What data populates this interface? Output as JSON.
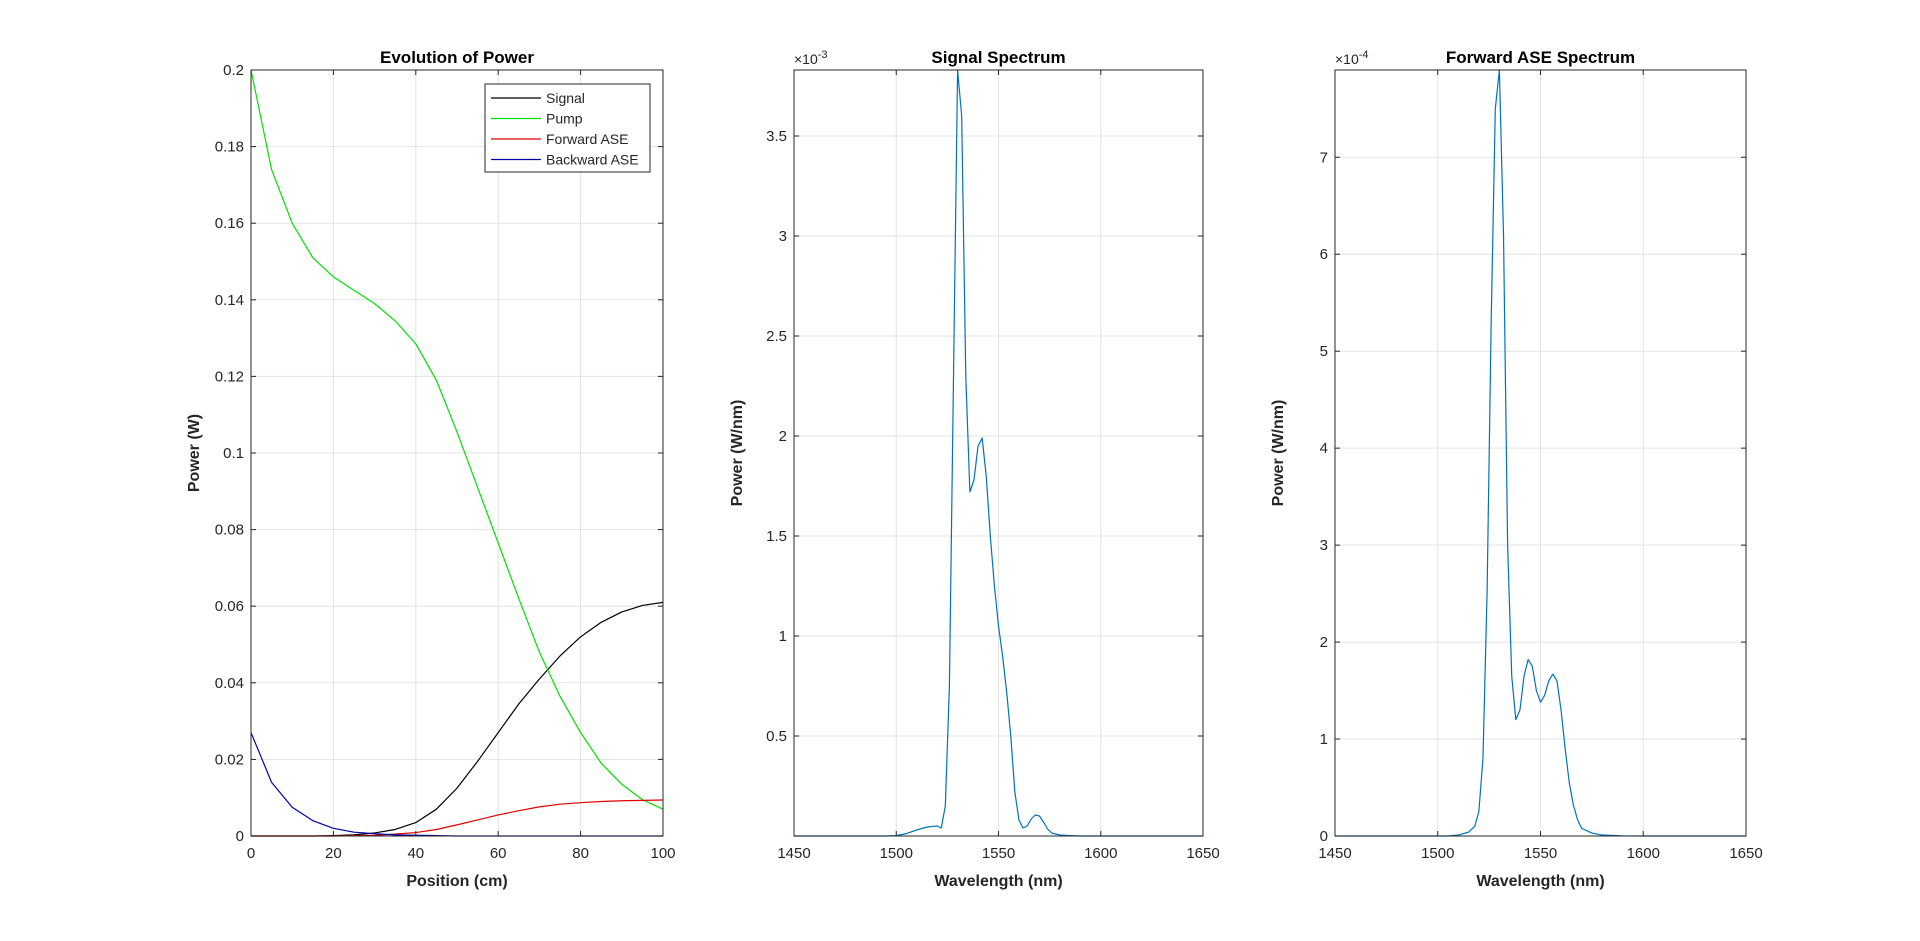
{
  "colors": {
    "signal": "#000000",
    "pump": "#00e000",
    "forward_ase": "#e00000",
    "backward_ase": "#0000b0",
    "spectrum": "#0072bd",
    "grid": "#e3e3e3",
    "axes": "#262626"
  },
  "chart_data": [
    {
      "type": "line",
      "title": "Evolution of Power",
      "xlabel": "Position (cm)",
      "ylabel": "Power (W)",
      "xlim": [
        0,
        100
      ],
      "ylim": [
        0,
        0.2
      ],
      "xticks": [
        0,
        20,
        40,
        60,
        80,
        100
      ],
      "xtick_labels": [
        "0",
        "20",
        "40",
        "60",
        "80",
        "100"
      ],
      "yticks": [
        0,
        0.02,
        0.04,
        0.06,
        0.08,
        0.1,
        0.12,
        0.14,
        0.16,
        0.18,
        0.2
      ],
      "ytick_labels": [
        "0",
        "0.02",
        "0.04",
        "0.06",
        "0.08",
        "0.1",
        "0.12",
        "0.14",
        "0.16",
        "0.18",
        "0.2"
      ],
      "grid": true,
      "legend": "top-right",
      "x": [
        0,
        5,
        10,
        15,
        20,
        25,
        30,
        35,
        40,
        45,
        50,
        55,
        60,
        65,
        70,
        75,
        80,
        85,
        90,
        95,
        100
      ],
      "series": [
        {
          "name": "Signal",
          "color_key": "signal",
          "values": [
            0,
            0,
            0,
            0,
            0.0001,
            0.0003,
            0.0008,
            0.0017,
            0.0035,
            0.007,
            0.0125,
            0.0195,
            0.027,
            0.0345,
            0.041,
            0.047,
            0.052,
            0.0558,
            0.0585,
            0.0602,
            0.061
          ]
        },
        {
          "name": "Pump",
          "color_key": "pump",
          "values": [
            0.2,
            0.174,
            0.16,
            0.151,
            0.146,
            0.1425,
            0.139,
            0.1345,
            0.1285,
            0.119,
            0.1055,
            0.091,
            0.0765,
            0.062,
            0.048,
            0.0365,
            0.027,
            0.019,
            0.0135,
            0.0095,
            0.007
          ]
        },
        {
          "name": "Forward ASE",
          "color_key": "forward_ase",
          "values": [
            0,
            0,
            0,
            0,
            0,
            0.0001,
            0.0002,
            0.0005,
            0.0009,
            0.0017,
            0.0029,
            0.0042,
            0.0055,
            0.0066,
            0.0076,
            0.0083,
            0.0087,
            0.009,
            0.0092,
            0.0093,
            0.0094
          ]
        },
        {
          "name": "Backward ASE",
          "color_key": "backward_ase",
          "values": [
            0.027,
            0.014,
            0.0075,
            0.004,
            0.002,
            0.001,
            0.0006,
            0.0003,
            0.0002,
            0.0001,
            0,
            0,
            0,
            0,
            0,
            0,
            0,
            0,
            0,
            0,
            0
          ]
        }
      ]
    },
    {
      "type": "line",
      "title": "Signal Spectrum",
      "xlabel": "Wavelength (nm)",
      "ylabel": "Power (W/nm)",
      "exponent_label": "×10",
      "exponent_power": "-3",
      "y_multiplier": 0.001,
      "xlim": [
        1450,
        1650
      ],
      "ylim": [
        0,
        3.83
      ],
      "xticks": [
        1450,
        1500,
        1550,
        1600,
        1650
      ],
      "xtick_labels": [
        "1450",
        "1500",
        "1550",
        "1600",
        "1650"
      ],
      "yticks": [
        0.5,
        1,
        1.5,
        2,
        2.5,
        3,
        3.5
      ],
      "ytick_labels": [
        "0.5",
        "1",
        "1.5",
        "2",
        "2.5",
        "3",
        "3.5"
      ],
      "grid": true,
      "series": [
        {
          "color_key": "spectrum",
          "x": [
            1450,
            1495,
            1500,
            1505,
            1510,
            1515,
            1520,
            1522,
            1524,
            1526,
            1528,
            1530,
            1532,
            1534,
            1536,
            1538,
            1540,
            1542,
            1544,
            1546,
            1548,
            1550,
            1552,
            1554,
            1556,
            1558,
            1560,
            1562,
            1564,
            1566,
            1568,
            1570,
            1572,
            1574,
            1576,
            1580,
            1585,
            1590,
            1600,
            1650
          ],
          "values": [
            0,
            0,
            0.002,
            0.012,
            0.03,
            0.045,
            0.05,
            0.04,
            0.15,
            0.75,
            2.3,
            3.83,
            3.6,
            2.3,
            1.72,
            1.78,
            1.95,
            1.99,
            1.8,
            1.5,
            1.25,
            1.05,
            0.9,
            0.72,
            0.5,
            0.22,
            0.08,
            0.04,
            0.05,
            0.085,
            0.105,
            0.1,
            0.07,
            0.035,
            0.015,
            0.005,
            0.002,
            0,
            0,
            0
          ]
        }
      ]
    },
    {
      "type": "line",
      "title": "Forward ASE Spectrum",
      "xlabel": "Wavelength (nm)",
      "ylabel": "Power (W/nm)",
      "exponent_label": "×10",
      "exponent_power": "-4",
      "y_multiplier": 0.0001,
      "xlim": [
        1450,
        1650
      ],
      "ylim": [
        0,
        7.9
      ],
      "xticks": [
        1450,
        1500,
        1550,
        1600,
        1650
      ],
      "xtick_labels": [
        "1450",
        "1500",
        "1550",
        "1600",
        "1650"
      ],
      "yticks": [
        0,
        1,
        2,
        3,
        4,
        5,
        6,
        7
      ],
      "ytick_labels": [
        "0",
        "1",
        "2",
        "3",
        "4",
        "5",
        "6",
        "7"
      ],
      "grid": true,
      "series": [
        {
          "color_key": "spectrum",
          "x": [
            1450,
            1505,
            1510,
            1515,
            1518,
            1520,
            1522,
            1524,
            1526,
            1528,
            1530,
            1532,
            1534,
            1536,
            1538,
            1540,
            1542,
            1544,
            1546,
            1548,
            1550,
            1552,
            1554,
            1556,
            1558,
            1560,
            1562,
            1564,
            1566,
            1568,
            1570,
            1575,
            1580,
            1590,
            1600,
            1650
          ],
          "values": [
            0,
            0,
            0.01,
            0.04,
            0.1,
            0.25,
            0.8,
            2.5,
            5.3,
            7.5,
            7.9,
            6.2,
            3.0,
            1.65,
            1.2,
            1.3,
            1.65,
            1.82,
            1.75,
            1.5,
            1.38,
            1.45,
            1.6,
            1.67,
            1.6,
            1.3,
            0.9,
            0.55,
            0.32,
            0.17,
            0.08,
            0.03,
            0.01,
            0.002,
            0,
            0
          ]
        }
      ]
    }
  ]
}
